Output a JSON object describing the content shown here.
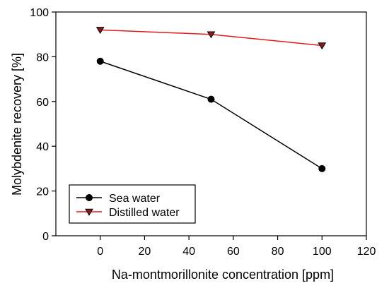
{
  "chart_data": {
    "type": "line",
    "xlabel": "Na-montmorillonite concentration [ppm]",
    "ylabel": "Molybdenite recovery [%]",
    "xlim": [
      -20,
      120
    ],
    "ylim": [
      0,
      100
    ],
    "x_ticks": [
      0,
      20,
      40,
      60,
      80,
      100,
      120
    ],
    "y_ticks": [
      0,
      20,
      40,
      60,
      80,
      100
    ],
    "grid": false,
    "legend_position": "bottom-left",
    "series": [
      {
        "name": "Sea water",
        "x": [
          0,
          50,
          100
        ],
        "y": [
          78,
          61,
          30
        ],
        "line_color": "#000000",
        "marker": "circle",
        "marker_fill": "#000000",
        "marker_stroke": "#000000"
      },
      {
        "name": "Distilled water",
        "x": [
          0,
          50,
          100
        ],
        "y": [
          92,
          90,
          85
        ],
        "line_color": "#e31a1c",
        "marker": "triangle-down",
        "marker_fill": "#8b1a1a",
        "marker_stroke": "#000000"
      }
    ]
  }
}
